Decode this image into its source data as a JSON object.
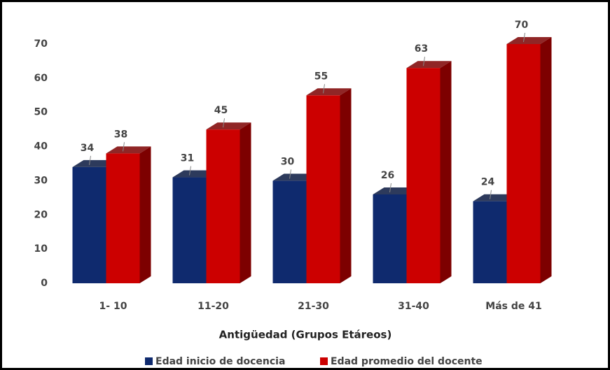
{
  "chart_data": {
    "type": "bar3d",
    "x_label": "Antigüedad (Grupos Etáreos)",
    "categories": [
      "1- 10",
      "11-20",
      "21-30",
      "31-40",
      "Más de 41"
    ],
    "series": [
      {
        "name": "Edad inicio de docencia",
        "color": "#0f2a6e",
        "side": "#08183f",
        "values": [
          34,
          31,
          30,
          26,
          24
        ]
      },
      {
        "name": "Edad promedio del docente",
        "color": "#cc0000",
        "side": "#7d0000",
        "values": [
          38,
          45,
          55,
          63,
          70
        ]
      }
    ],
    "ylim": [
      0,
      70
    ],
    "yticks": [
      0,
      10,
      20,
      30,
      40,
      50,
      60,
      70
    ],
    "grid": false
  }
}
